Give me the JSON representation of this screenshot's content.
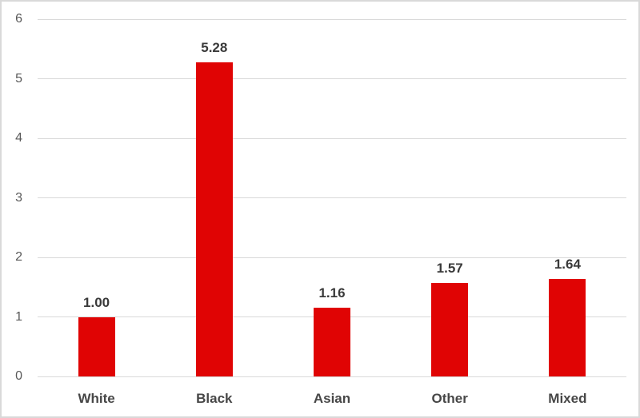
{
  "chart_data": {
    "type": "bar",
    "title": "",
    "xlabel": "",
    "ylabel": "",
    "categories": [
      "White",
      "Black",
      "Asian",
      "Other",
      "Mixed"
    ],
    "values": [
      1.0,
      5.28,
      1.16,
      1.57,
      1.64
    ],
    "value_labels": [
      "1.00",
      "5.28",
      "1.16",
      "1.57",
      "1.64"
    ],
    "ylim": [
      0,
      6
    ],
    "ytick_step": 1,
    "ytick_labels": [
      "0",
      "1",
      "2",
      "3",
      "4",
      "5",
      "6"
    ],
    "grid": "horizontal",
    "legend": "none",
    "colors": {
      "bar": "#e00404",
      "gridline": "#d9d9d9",
      "axis_tick_label": "#595959",
      "value_label": "#3a3a3a",
      "category_label": "#474747",
      "frame_border": "#d9d9d9",
      "background": "#ffffff"
    }
  }
}
